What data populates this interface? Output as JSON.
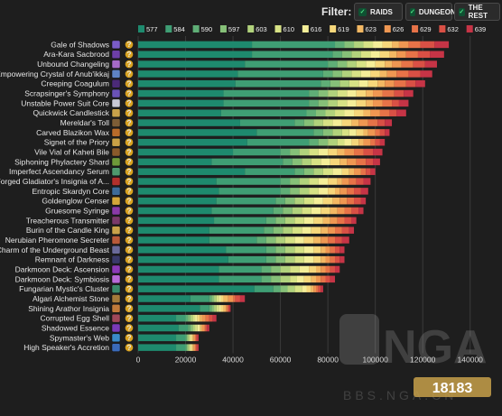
{
  "filter": {
    "label": "Filter:",
    "buttons": [
      {
        "label": "RAIDS",
        "checked": true
      },
      {
        "label": "DUNGEONS",
        "checked": true
      },
      {
        "label": "THE REST",
        "checked": true
      }
    ]
  },
  "chart_data": {
    "type": "bar",
    "orientation": "horizontal",
    "stacked": true,
    "title": "",
    "xlabel": "",
    "ylabel": "",
    "xlim": [
      0,
      150000
    ],
    "x_ticks": [
      0,
      20000,
      40000,
      60000,
      80000,
      100000,
      120000,
      140000
    ],
    "grid": true,
    "legend_position": "top",
    "series": [
      {
        "name": "577",
        "color": "#1e8a6e"
      },
      {
        "name": "584",
        "color": "#3f9e74"
      },
      {
        "name": "590",
        "color": "#5fae76"
      },
      {
        "name": "597",
        "color": "#86c078"
      },
      {
        "name": "603",
        "color": "#b1d27c"
      },
      {
        "name": "610",
        "color": "#d7e285"
      },
      {
        "name": "616",
        "color": "#f4ee98"
      },
      {
        "name": "619",
        "color": "#f6d77b"
      },
      {
        "name": "623",
        "color": "#f3b863"
      },
      {
        "name": "626",
        "color": "#ef9752"
      },
      {
        "name": "629",
        "color": "#e77348"
      },
      {
        "name": "632",
        "color": "#d95045"
      },
      {
        "name": "639",
        "color": "#c63446"
      }
    ],
    "categories": [
      "Gale of Shadows",
      "Ara-Kara Sacbrood",
      "Unbound Changeling",
      "Empowering Crystal of Anub'ikkaj",
      "Creeping Coagulum",
      "Scrapsinger's Symphony",
      "Unstable Power Suit Core",
      "Quickwick Candlestick",
      "Mereldar's Toll",
      "Carved Blazikon Wax",
      "Signet of the Priory",
      "Vile Vial of Kaheti Bile",
      "Siphoning Phylactery Shard",
      "Imperfect Ascendancy Serum",
      "Forged Gladiator's Insignia of A...",
      "Entropic Skardyn Core",
      "Goldenglow Censer",
      "Gruesome Syringe",
      "Treacherous Transmitter",
      "Burin of the Candle King",
      "Nerubian Pheromone Secreter",
      "Charm of the Underground Beast",
      "Remnant of Darkness",
      "Darkmoon Deck: Ascension",
      "Darkmoon Deck: Symbiosis",
      "Fungarian Mystic's Cluster",
      "Algari Alchemist Stone",
      "Shining Arathor Insignia",
      "Corrupted Egg Shell",
      "Shadowed Essence",
      "Spymaster's Web",
      "High Speaker's Accretion"
    ],
    "icon_colors": [
      "#7a5cc9",
      "#6d3fa8",
      "#a66ac8",
      "#5e83c4",
      "#4b2a78",
      "#6a52b8",
      "#c9c9d6",
      "#c9a24a",
      "#7d5d36",
      "#b86b2a",
      "#caa146",
      "#8a5a2b",
      "#6e9a3a",
      "#4f9a6e",
      "#b2312c",
      "#3d6b99",
      "#d4a63a",
      "#8a3aa8",
      "#7a3a6a",
      "#c9a24a",
      "#b85a3a",
      "#6a6a9a",
      "#3a3a6a",
      "#8c3ab8",
      "#b86ad8",
      "#3a8a6a",
      "#a47a3a",
      "#c07a3a",
      "#a0485a",
      "#7a3ab8",
      "#3a8ac8",
      "#3a6ab8"
    ],
    "breakpoints": [
      [
        48000,
        83000,
        87000,
        91000,
        95000,
        99000,
        103000,
        107000,
        110000,
        114000,
        119000,
        125000,
        131000
      ],
      [
        48000,
        82000,
        86000,
        90000,
        94000,
        98000,
        102000,
        106000,
        109000,
        113000,
        118000,
        123000,
        129000
      ],
      [
        45000,
        80000,
        84000,
        88000,
        92000,
        96000,
        100000,
        104000,
        107000,
        111000,
        116000,
        121000,
        126000
      ],
      [
        42000,
        78000,
        82000,
        86000,
        90000,
        94000,
        98000,
        102000,
        105000,
        109000,
        114000,
        119000,
        124000
      ],
      [
        41000,
        77000,
        81000,
        85000,
        89000,
        93000,
        97000,
        101000,
        104000,
        108000,
        113000,
        117000,
        121000
      ],
      [
        36000,
        72000,
        76000,
        80000,
        84000,
        88000,
        92000,
        96000,
        99000,
        103000,
        108000,
        112000,
        116000
      ],
      [
        36000,
        72000,
        76000,
        80000,
        84000,
        88000,
        92000,
        96000,
        99000,
        103000,
        107000,
        110000,
        114000
      ],
      [
        35000,
        71000,
        75000,
        79000,
        83000,
        87000,
        91000,
        95000,
        98000,
        102000,
        106000,
        109000,
        113000
      ],
      [
        43000,
        66000,
        70000,
        74000,
        78000,
        82000,
        86000,
        90000,
        93000,
        97000,
        101000,
        104000,
        107000
      ],
      [
        50000,
        74000,
        78000,
        82000,
        86000,
        89000,
        92000,
        95000,
        97000,
        100000,
        102000,
        104000,
        106000
      ],
      [
        46000,
        72000,
        76000,
        80000,
        84000,
        87000,
        90000,
        93000,
        95000,
        98000,
        100000,
        102000,
        104000
      ],
      [
        40000,
        60000,
        64000,
        68000,
        72000,
        76000,
        80000,
        84000,
        87000,
        91000,
        95000,
        99000,
        103000
      ],
      [
        31000,
        61000,
        65000,
        69000,
        73000,
        77000,
        81000,
        85000,
        88000,
        92000,
        96000,
        99000,
        102000
      ],
      [
        45000,
        66000,
        70000,
        74000,
        78000,
        82000,
        86000,
        89000,
        91000,
        94000,
        96000,
        98000,
        100000
      ],
      [
        33000,
        60000,
        64000,
        68000,
        72000,
        76000,
        80000,
        84000,
        86000,
        89000,
        92000,
        95000,
        98000
      ],
      [
        34000,
        60000,
        64000,
        68000,
        72000,
        76000,
        80000,
        83000,
        85000,
        88000,
        91000,
        94000,
        97000
      ],
      [
        33000,
        58000,
        62000,
        66000,
        70000,
        74000,
        78000,
        82000,
        85000,
        88000,
        91000,
        94000,
        96000
      ],
      [
        31000,
        57000,
        61000,
        65000,
        69000,
        73000,
        77000,
        81000,
        84000,
        87000,
        90000,
        93000,
        95000
      ],
      [
        32000,
        54000,
        58000,
        62000,
        66000,
        70000,
        74000,
        78000,
        81000,
        84000,
        87000,
        90000,
        92000
      ],
      [
        30000,
        53000,
        57000,
        61000,
        65000,
        69000,
        73000,
        77000,
        80000,
        83000,
        86000,
        89000,
        91000
      ],
      [
        30000,
        50000,
        54000,
        58000,
        62000,
        66000,
        70000,
        74000,
        77000,
        80000,
        83000,
        86000,
        89000
      ],
      [
        37000,
        54000,
        58000,
        62000,
        66000,
        70000,
        74000,
        77000,
        79000,
        81000,
        83000,
        85000,
        87000
      ],
      [
        38000,
        54000,
        58000,
        62000,
        66000,
        70000,
        74000,
        77000,
        79000,
        81000,
        83000,
        85000,
        87000
      ],
      [
        34000,
        52000,
        56000,
        60000,
        64000,
        68000,
        72000,
        75000,
        77000,
        79000,
        81000,
        83000,
        85000
      ],
      [
        34000,
        52000,
        56000,
        60000,
        64000,
        67000,
        70000,
        73000,
        75000,
        77000,
        79000,
        81000,
        83000
      ],
      [
        49000,
        57000,
        60000,
        63000,
        66000,
        69000,
        71000,
        73000,
        74000,
        75000,
        76000,
        77000,
        78000
      ],
      [
        22000,
        30000,
        31000,
        32000,
        33000,
        34000,
        35000,
        36000,
        38000,
        40000,
        41000,
        43000,
        45000
      ],
      [
        26000,
        30000,
        31000,
        32000,
        33000,
        34000,
        35000,
        36000,
        37000,
        37500,
        38000,
        38500,
        39000
      ],
      [
        16000,
        20000,
        21000,
        22000,
        23000,
        24000,
        25000,
        26000,
        27000,
        28500,
        30000,
        31500,
        33000
      ],
      [
        17000,
        21000,
        22000,
        23000,
        24000,
        25000,
        26000,
        26500,
        27000,
        28000,
        28500,
        29000,
        30000
      ],
      [
        16000,
        20000,
        20500,
        21000,
        21500,
        22000,
        22500,
        23000,
        23500,
        24000,
        24500,
        25000,
        25500
      ],
      [
        16000,
        20000,
        20500,
        21000,
        21500,
        22000,
        22500,
        23000,
        23500,
        24000,
        24500,
        25000,
        25500
      ]
    ]
  },
  "watermark": {
    "logo_text": "NGA",
    "sub_text": "BBS.NGA.CN",
    "corner_logo": "18183"
  }
}
